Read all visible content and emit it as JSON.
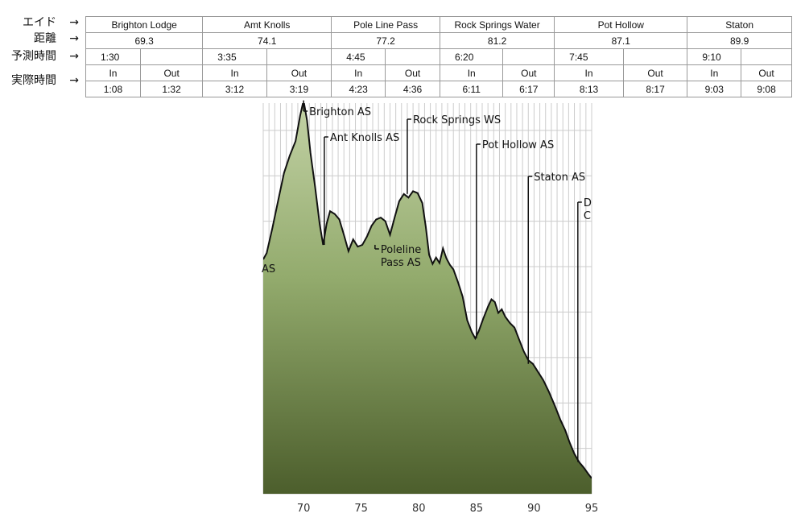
{
  "row_labels": {
    "aid": "エイド",
    "distance": "距離",
    "planned": "予測時間",
    "actual": "実際時間",
    "arrow": "→"
  },
  "aid_stations": [
    {
      "name": "Brighton Lodge",
      "distance": "69.3",
      "planned": "1:30",
      "in_label": "In",
      "out_label": "Out",
      "in": "1:08",
      "out": "1:32"
    },
    {
      "name": "Amt Knolls",
      "distance": "74.1",
      "planned": "3:35",
      "in_label": "In",
      "out_label": "Out",
      "in": "3:12",
      "out": "3:19"
    },
    {
      "name": "Pole Line Pass",
      "distance": "77.2",
      "planned": "4:45",
      "in_label": "In",
      "out_label": "Out",
      "in": "4:23",
      "out": "4:36"
    },
    {
      "name": "Rock Springs Water",
      "distance": "81.2",
      "planned": "6:20",
      "in_label": "In",
      "out_label": "Out",
      "in": "6:11",
      "out": "6:17"
    },
    {
      "name": "Pot Hollow",
      "distance": "87.1",
      "planned": "7:45",
      "in_label": "In",
      "out_label": "Out",
      "in": "8:13",
      "out": "8:17"
    },
    {
      "name": "Staton",
      "distance": "89.9",
      "planned": "9:10",
      "in_label": "In",
      "out_label": "Out",
      "in": "9:03",
      "out": "9:08"
    }
  ],
  "chart_data": {
    "type": "area",
    "title": "",
    "xlabel": "",
    "ylabel": "",
    "xlim": [
      66.5,
      95
    ],
    "ylim": [
      5000,
      9300
    ],
    "x_ticks": [
      {
        "value": 70,
        "label": "70"
      },
      {
        "value": 75,
        "label": "75"
      },
      {
        "value": 80,
        "label": "80"
      },
      {
        "value": 85,
        "label": "85"
      },
      {
        "value": 90,
        "label": "90"
      },
      {
        "value": 95,
        "label": "95"
      }
    ],
    "grid": true,
    "colors": {
      "fill_top": "#c3d2a6",
      "fill_mid": "#93ab6d",
      "fill_bottom": "#4c5e2c",
      "line": "#111111",
      "grid": "#cccccc"
    },
    "series": [
      {
        "x": [
          66.5,
          66.8,
          67.3,
          67.8,
          68.3,
          68.8,
          69.3,
          69.7,
          70.0,
          70.3,
          70.6,
          71.0,
          71.4,
          71.7,
          72.0,
          72.3,
          72.7,
          73.1,
          73.5,
          73.9,
          74.3,
          74.7,
          75.1,
          75.5,
          75.9,
          76.3,
          76.7,
          77.1,
          77.5,
          77.9,
          78.3,
          78.7,
          79.1,
          79.5,
          79.9,
          80.3,
          80.6,
          80.9,
          81.2,
          81.5,
          81.8,
          82.1,
          82.4,
          82.7,
          83.0,
          83.4,
          83.8,
          84.2,
          84.6,
          84.9,
          85.2,
          85.6,
          86.0,
          86.3,
          86.6,
          86.9,
          87.2,
          87.5,
          87.9,
          88.3,
          88.7,
          89.1,
          89.5,
          89.9,
          90.3,
          90.8,
          91.3,
          91.8,
          92.3,
          92.7,
          93.1,
          93.5,
          93.9,
          94.3,
          94.7,
          95.0
        ],
        "y": [
          7580,
          7650,
          7930,
          8230,
          8530,
          8720,
          8880,
          9160,
          9330,
          9110,
          8750,
          8380,
          7970,
          7740,
          7970,
          8110,
          8080,
          8020,
          7850,
          7670,
          7800,
          7720,
          7740,
          7830,
          7950,
          8020,
          8040,
          8000,
          7850,
          8040,
          8220,
          8300,
          8260,
          8330,
          8310,
          8200,
          7940,
          7630,
          7530,
          7600,
          7540,
          7700,
          7590,
          7520,
          7470,
          7330,
          7170,
          6910,
          6780,
          6710,
          6790,
          6930,
          7060,
          7140,
          7110,
          6990,
          7030,
          6950,
          6880,
          6830,
          6700,
          6570,
          6470,
          6430,
          6350,
          6250,
          6120,
          5970,
          5810,
          5700,
          5560,
          5440,
          5350,
          5290,
          5220,
          5170
        ]
      }
    ],
    "annotations": [
      {
        "x": 70.0,
        "y": 9330,
        "lines": [
          "Brighton AS"
        ]
      },
      {
        "x": 71.8,
        "y": 7740,
        "lines": [
          "Ant Knolls AS"
        ]
      },
      {
        "x": 76.2,
        "y": 7740,
        "lines": [
          "Poleline",
          "Pass AS"
        ]
      },
      {
        "x": 79.0,
        "y": 8300,
        "lines": [
          "Rock Springs WS"
        ]
      },
      {
        "x": 85.0,
        "y": 6710,
        "lines": [
          "Pot Hollow AS"
        ]
      },
      {
        "x": 89.5,
        "y": 6430,
        "lines": [
          "Staton AS"
        ]
      },
      {
        "x": 93.8,
        "y": 5350,
        "lines": [
          "D",
          "C"
        ]
      },
      {
        "x": 66.5,
        "y": 7600,
        "lines": [
          "AS"
        ]
      }
    ]
  }
}
